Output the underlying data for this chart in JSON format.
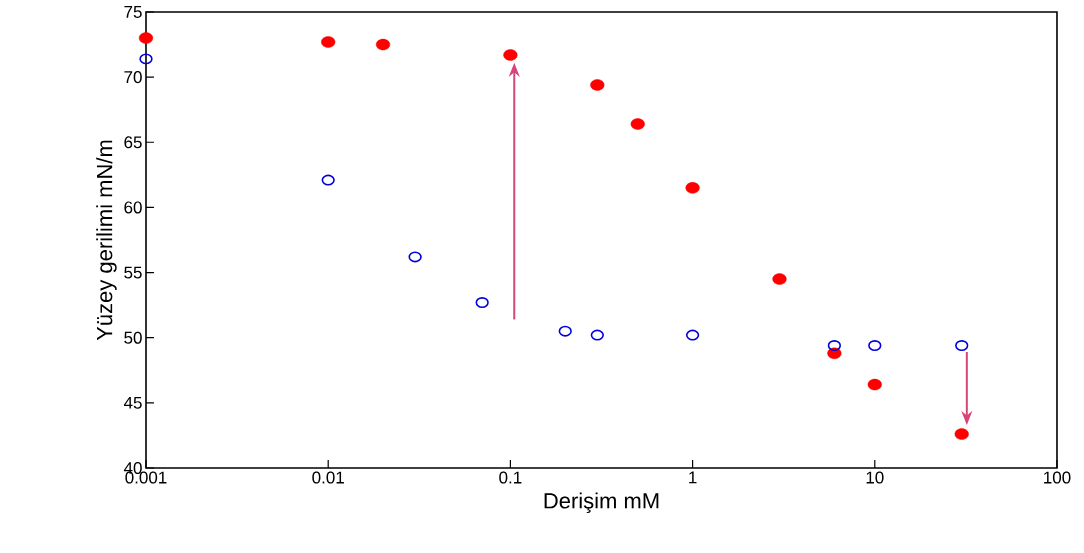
{
  "chart_data": {
    "type": "scatter",
    "xlabel": "Derişim mM",
    "ylabel": "Yüzey gerilimi mN/m",
    "log": "x",
    "xlim": [
      0.001,
      100
    ],
    "ylim": [
      40,
      75
    ],
    "xticks": [
      {
        "value": 0.001,
        "label": "0.001"
      },
      {
        "value": 0.01,
        "label": "0.01"
      },
      {
        "value": 0.1,
        "label": "0.1"
      },
      {
        "value": 1,
        "label": "1"
      },
      {
        "value": 10,
        "label": "10"
      },
      {
        "value": 100,
        "label": "100"
      }
    ],
    "yticks": [
      40,
      45,
      50,
      55,
      60,
      65,
      70,
      75
    ],
    "grid": false,
    "marker": "circle",
    "series": [
      {
        "color": "#ff0000",
        "x": [
          0.001,
          0.01,
          0.02,
          0.1,
          0.3,
          0.5,
          1,
          3,
          6,
          10,
          30
        ],
        "values": [
          73.0,
          72.7,
          72.5,
          71.7,
          69.4,
          66.4,
          61.5,
          54.5,
          48.8,
          46.4,
          42.6
        ]
      },
      {
        "color": "#0000dd",
        "x": [
          0.001,
          0.01,
          0.03,
          0.07,
          0.2,
          0.3,
          1,
          6,
          10,
          30
        ],
        "values": [
          71.4,
          62.1,
          56.2,
          52.7,
          50.5,
          50.2,
          50.2,
          49.4,
          49.4,
          49.4
        ]
      }
    ]
  }
}
